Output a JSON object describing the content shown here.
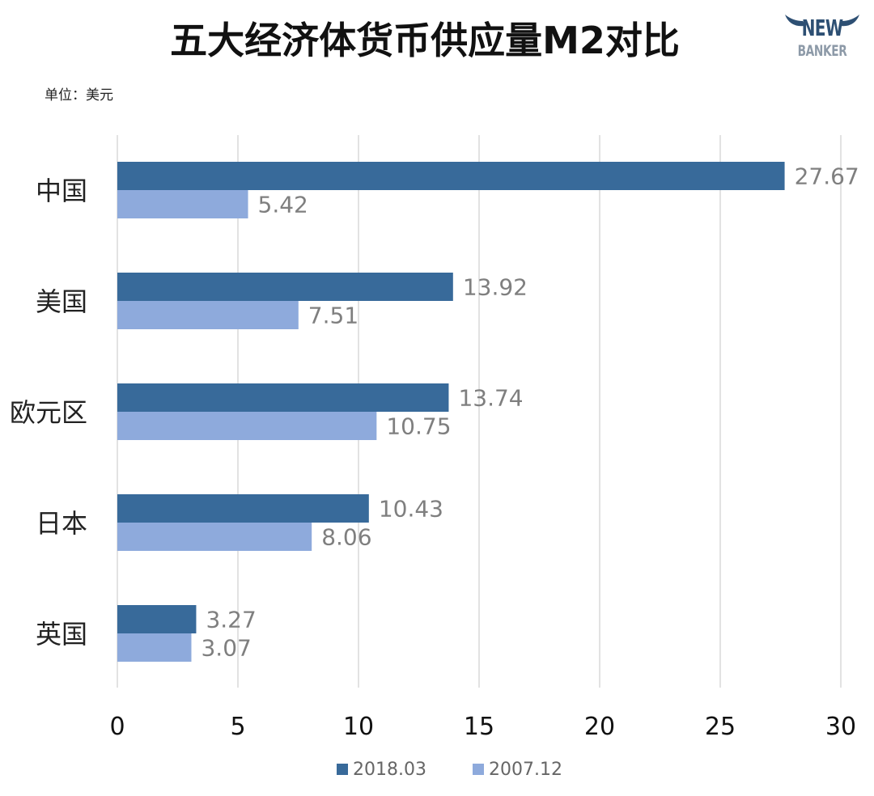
{
  "title": "五大经济体货币供应量M2对比",
  "unit": "单位：美元",
  "logo": {
    "line1": "NEW",
    "line2": "BANKER",
    "color": "#2d4f73"
  },
  "chart_data": {
    "type": "bar",
    "orientation": "horizontal",
    "categories": [
      "中国",
      "美国",
      "欧元区",
      "日本",
      "英国"
    ],
    "series": [
      {
        "name": "2018.03",
        "color": "#386a9a",
        "values": [
          27.67,
          13.92,
          13.74,
          10.43,
          3.27
        ],
        "labels": [
          "27.67",
          "13.92",
          "13.74",
          "10.43",
          "3.27"
        ]
      },
      {
        "name": "2007.12",
        "color": "#8eaadc",
        "values": [
          5.42,
          7.51,
          10.75,
          8.06,
          3.07
        ],
        "labels": [
          "5.42",
          "7.51",
          "10.75",
          "8.06",
          "3.07"
        ]
      }
    ],
    "xlim": [
      0,
      30
    ],
    "xticks": [
      "0",
      "5",
      "10",
      "15",
      "20",
      "25",
      "30"
    ],
    "grid": true,
    "legend_position": "bottom"
  }
}
